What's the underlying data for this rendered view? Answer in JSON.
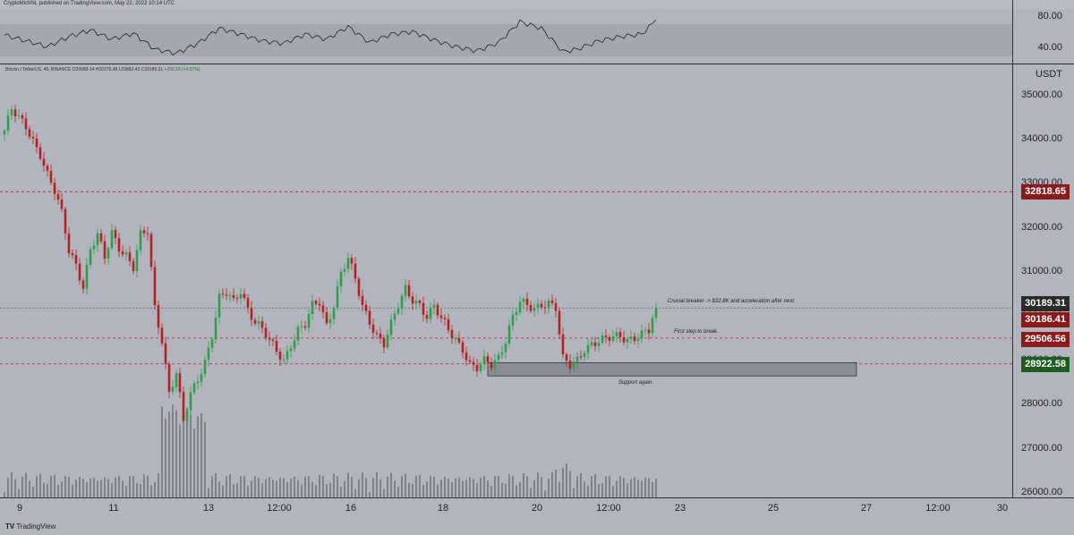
{
  "header": {
    "publish_line": "CryptoMichNL published on TradingView.com, May 22, 2022 10:14 UTC"
  },
  "symbol_line": {
    "text": "Bitcoin / TetherUS, 45, BINANCE  O29989.14  H30275.48  L29882.43  C30189.31",
    "change": "+200.18 (+0.67%)"
  },
  "axes": {
    "unit": "USDT",
    "rsi_ticks": [
      "80.00",
      "40.00"
    ],
    "price_ticks": [
      "35000.00",
      "34000.00",
      "33000.00",
      "32000.00",
      "31000.00",
      "30000.00",
      "29000.00",
      "28000.00",
      "27000.00",
      "26000.00"
    ],
    "time_ticks": [
      "9",
      "11",
      "13",
      "12:00",
      "16",
      "18",
      "20",
      "12:00",
      "23",
      "25",
      "27",
      "12:00",
      "30"
    ]
  },
  "price_tags": [
    {
      "label": "32818.65",
      "color": "#8b1a1a"
    },
    {
      "label": "30189.31",
      "color": "#2b2b2b"
    },
    {
      "label": "30186.41",
      "color": "#8b1a1a"
    },
    {
      "label": "29506.56",
      "color": "#8b1a1a"
    },
    {
      "label": "28922.58",
      "color": "#1e5b20"
    }
  ],
  "annotations": {
    "crucial": "Crucial breaker -> $32.8K and acceleration after next.",
    "first_step": "First step to break.",
    "support": "Support again."
  },
  "footer": {
    "logo": "TradingView"
  },
  "colors": {
    "up": "#2e9e4a",
    "down": "#b32222",
    "level": "#a52a2a",
    "background": "#b3b5be"
  },
  "chart_data": {
    "type": "candlestick",
    "symbol": "BTCUSDT",
    "interval": "45",
    "ylim": [
      25900,
      35700
    ],
    "horizontal_levels": [
      32818.65,
      29506.56,
      28922.58
    ],
    "support_zone": [
      28650,
      28950
    ],
    "rsi_range": [
      30,
      90
    ],
    "price_path": [
      [
        0,
        34200
      ],
      [
        2,
        34650
      ],
      [
        4,
        34450
      ],
      [
        6,
        34300
      ],
      [
        8,
        34000
      ],
      [
        10,
        33700
      ],
      [
        12,
        33200
      ],
      [
        14,
        32800
      ],
      [
        16,
        32300
      ],
      [
        18,
        31500
      ],
      [
        20,
        31200
      ],
      [
        22,
        30700
      ],
      [
        24,
        31500
      ],
      [
        26,
        31800
      ],
      [
        28,
        31300
      ],
      [
        30,
        31900
      ],
      [
        32,
        31600
      ],
      [
        34,
        31400
      ],
      [
        36,
        31100
      ],
      [
        38,
        31800
      ],
      [
        40,
        31900
      ],
      [
        42,
        30200
      ],
      [
        44,
        29500
      ],
      [
        46,
        28300
      ],
      [
        48,
        28700
      ],
      [
        50,
        27600
      ],
      [
        52,
        28200
      ],
      [
        54,
        28600
      ],
      [
        56,
        29000
      ],
      [
        58,
        29600
      ],
      [
        60,
        30400
      ],
      [
        62,
        30500
      ],
      [
        64,
        30300
      ],
      [
        66,
        30600
      ],
      [
        68,
        30200
      ],
      [
        70,
        29900
      ],
      [
        72,
        29700
      ],
      [
        74,
        29400
      ],
      [
        76,
        29200
      ],
      [
        78,
        29000
      ],
      [
        80,
        29400
      ],
      [
        82,
        29700
      ],
      [
        84,
        29800
      ],
      [
        86,
        30200
      ],
      [
        88,
        30300
      ],
      [
        90,
        29800
      ],
      [
        92,
        30300
      ],
      [
        94,
        31000
      ],
      [
        96,
        31300
      ],
      [
        98,
        30800
      ],
      [
        100,
        30200
      ],
      [
        102,
        29900
      ],
      [
        104,
        29600
      ],
      [
        106,
        29400
      ],
      [
        108,
        29800
      ],
      [
        110,
        30200
      ],
      [
        112,
        30600
      ],
      [
        114,
        30400
      ],
      [
        116,
        30300
      ],
      [
        118,
        30000
      ],
      [
        120,
        30200
      ],
      [
        122,
        29900
      ],
      [
        124,
        29700
      ],
      [
        126,
        29500
      ],
      [
        128,
        29300
      ],
      [
        130,
        28900
      ],
      [
        132,
        28800
      ],
      [
        134,
        28950
      ],
      [
        136,
        28900
      ],
      [
        138,
        29100
      ],
      [
        140,
        29500
      ],
      [
        142,
        30000
      ],
      [
        144,
        30300
      ],
      [
        146,
        30200
      ],
      [
        148,
        30150
      ],
      [
        150,
        30300
      ],
      [
        152,
        30350
      ],
      [
        154,
        30200
      ],
      [
        156,
        29000
      ],
      [
        158,
        28850
      ],
      [
        160,
        29000
      ],
      [
        162,
        29300
      ],
      [
        164,
        29400
      ],
      [
        166,
        29450
      ],
      [
        168,
        29450
      ],
      [
        170,
        29500
      ],
      [
        172,
        29550
      ],
      [
        174,
        29500
      ],
      [
        176,
        29550
      ],
      [
        178,
        29600
      ],
      [
        180,
        29650
      ],
      [
        182,
        30189.31
      ]
    ],
    "rsi_path": [
      [
        0,
        62
      ],
      [
        6,
        55
      ],
      [
        12,
        48
      ],
      [
        18,
        60
      ],
      [
        24,
        68
      ],
      [
        30,
        57
      ],
      [
        36,
        64
      ],
      [
        42,
        45
      ],
      [
        48,
        40
      ],
      [
        54,
        52
      ],
      [
        60,
        70
      ],
      [
        66,
        63
      ],
      [
        72,
        55
      ],
      [
        78,
        52
      ],
      [
        84,
        63
      ],
      [
        90,
        57
      ],
      [
        96,
        72
      ],
      [
        102,
        53
      ],
      [
        108,
        63
      ],
      [
        114,
        66
      ],
      [
        120,
        56
      ],
      [
        126,
        48
      ],
      [
        132,
        43
      ],
      [
        138,
        53
      ],
      [
        144,
        78
      ],
      [
        150,
        70
      ],
      [
        156,
        42
      ],
      [
        160,
        45
      ],
      [
        166,
        55
      ],
      [
        172,
        60
      ],
      [
        178,
        63
      ],
      [
        182,
        80
      ]
    ]
  }
}
